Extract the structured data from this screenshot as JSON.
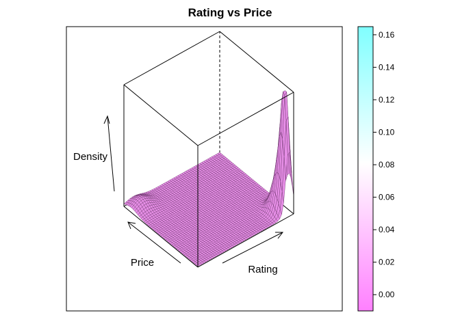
{
  "chart_data": {
    "type": "surface",
    "title": "Rating vs Price",
    "xlabel": "Price",
    "ylabel": "Rating",
    "zlabel": "Density",
    "surface": {
      "description_free_peaks": [
        {
          "price": 0.05,
          "rating": 0.95,
          "density": 0.155,
          "spread_price": 0.045,
          "spread_rating": 0.03
        },
        {
          "price": 0.12,
          "rating": 0.93,
          "density": 0.05,
          "spread_price": 0.06,
          "spread_rating": 0.05
        },
        {
          "price": 0.9,
          "rating": 0.1,
          "density": 0.012,
          "spread_price": 0.08,
          "spread_rating": 0.08
        }
      ],
      "base": 0.001,
      "surface_color": "#e68ee6",
      "line_color": "#5a2a5a"
    },
    "colorbar": {
      "ticks": [
        0.0,
        0.02,
        0.04,
        0.06,
        0.08,
        0.1,
        0.12,
        0.14,
        0.16
      ],
      "tick_labels": [
        "0.00",
        "0.02",
        "0.04",
        "0.06",
        "0.08",
        "0.10",
        "0.12",
        "0.14",
        "0.16"
      ],
      "range": [
        -0.01,
        0.165
      ],
      "colors": [
        "#ff80ff",
        "#ffffff",
        "#80ffff"
      ]
    }
  }
}
